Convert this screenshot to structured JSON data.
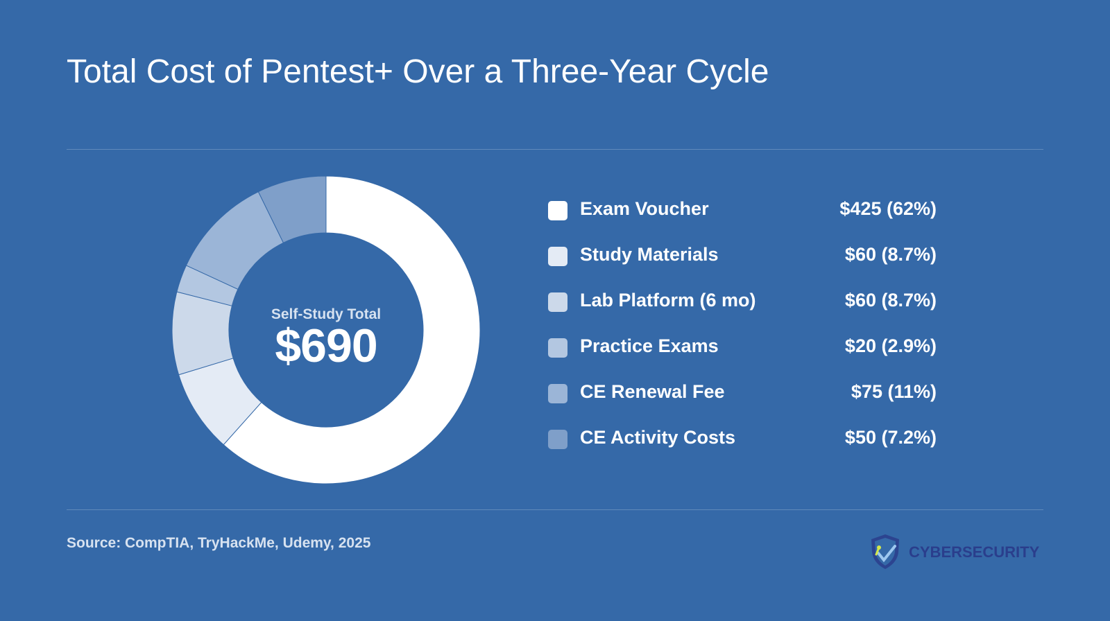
{
  "title": "Total Cost of Pentest+ Over a Three-Year Cycle",
  "center": {
    "label": "Self-Study Total",
    "value": "$690"
  },
  "source": "Source: CompTIA, TryHackMe, Udemy, 2025",
  "brand": {
    "name": "CYBERSECURITY",
    "icon": "shield-icon",
    "color": "#2a3e8c"
  },
  "colors": {
    "background": "#3569a8"
  },
  "chart_data": {
    "type": "pie",
    "variant": "donut",
    "total": 690,
    "title": "Total Cost of Pentest+ Over a Three-Year Cycle",
    "legend_position": "right",
    "slices": [
      {
        "label": "Exam Voucher",
        "value": 425,
        "display": "$425 (62%)",
        "color": "#ffffff"
      },
      {
        "label": "Study Materials",
        "value": 60,
        "display": "$60 (8.7%)",
        "color": "#e4ebf5"
      },
      {
        "label": "Lab Platform (6 mo)",
        "value": 60,
        "display": "$60 (8.7%)",
        "color": "#ccd9ea"
      },
      {
        "label": "Practice Exams",
        "value": 20,
        "display": "$20 (2.9%)",
        "color": "#b3c7e1"
      },
      {
        "label": "CE Renewal Fee",
        "value": 75,
        "display": "$75 (11%)",
        "color": "#9bb5d7"
      },
      {
        "label": "CE Activity Costs",
        "value": 50,
        "display": "$50 (7.2%)",
        "color": "#7f9fc9"
      }
    ]
  }
}
